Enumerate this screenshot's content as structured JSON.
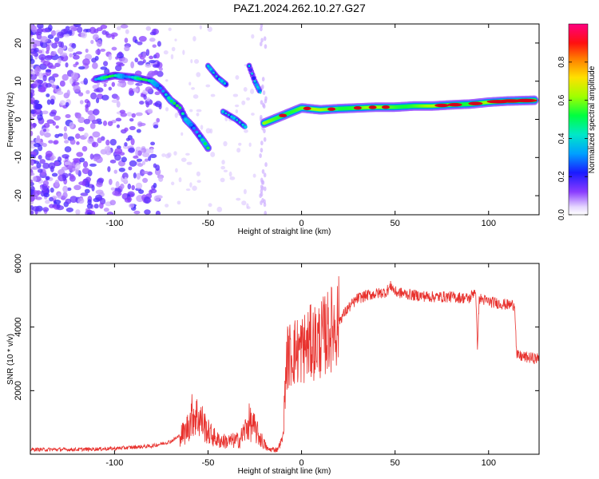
{
  "title": "PAZ1.2024.262.10.27.G27",
  "colors": {
    "snr_line": "#e8322e",
    "spectral_core": "#d6001c",
    "spectral_scatter": "#8a3cff"
  },
  "chart_data": [
    {
      "type": "heatmap",
      "title": "",
      "xlabel": "Height of straight line (km)",
      "ylabel": "Frequency (Hz)",
      "xlim": [
        -145,
        127
      ],
      "ylim": [
        -25,
        25
      ],
      "x_ticks": [
        "-100",
        "-50",
        "0",
        "50",
        "100"
      ],
      "x_tick_values": [
        -100,
        -50,
        0,
        50,
        100
      ],
      "y_ticks": [
        "-20",
        "-10",
        "0",
        "10",
        "20"
      ],
      "y_tick_values": [
        -20,
        -10,
        0,
        10,
        20
      ],
      "colorbar": {
        "label": "Normalized spectral amplitude",
        "range": [
          0,
          1
        ],
        "ticks": [
          "0.0",
          "0.2",
          "0.4",
          "0.6",
          "0.8"
        ],
        "tick_values": [
          0.0,
          0.2,
          0.4,
          0.6,
          0.8
        ],
        "colormap": "rainbow (white-violet-blue-cyan-green-yellow-red-magenta)"
      },
      "main_ridge": {
        "x": [
          -110,
          -100,
          -90,
          -80,
          -75,
          -70,
          -65,
          -62,
          -58,
          -55,
          -52,
          -50
        ],
        "y": [
          10.5,
          11.5,
          11,
          10,
          8,
          5,
          3,
          0,
          -2,
          -4,
          -6,
          -7.5
        ]
      },
      "secondary_ridge": {
        "x": [
          -20,
          -15,
          -10,
          -5,
          0,
          10,
          20,
          30,
          40,
          50,
          60,
          70,
          80,
          90,
          100,
          110,
          125
        ],
        "y": [
          -1,
          0,
          1,
          2,
          3,
          2.5,
          2.8,
          3,
          3.2,
          3.2,
          3.5,
          3.5,
          3.8,
          4,
          4.5,
          4.8,
          5
        ]
      },
      "scatter_features": [
        {
          "x": [
            -50,
            -45,
            -40
          ],
          "y": [
            14,
            11,
            9
          ]
        },
        {
          "x": [
            -28,
            -25,
            -22
          ],
          "y": [
            14,
            10,
            7
          ]
        },
        {
          "x": [
            -42,
            -35,
            -30
          ],
          "y": [
            2,
            0,
            -2
          ]
        }
      ],
      "grid": false
    },
    {
      "type": "line",
      "title": "",
      "xlabel": "Height of straight line (km)",
      "ylabel": "SNR (10 * v/v)",
      "xlim": [
        -145,
        127
      ],
      "ylim": [
        0,
        6000
      ],
      "x_ticks": [
        "-100",
        "-50",
        "0",
        "50",
        "100"
      ],
      "x_tick_values": [
        -100,
        -50,
        0,
        50,
        100
      ],
      "y_ticks": [
        "2000",
        "4000",
        "6000"
      ],
      "y_tick_values": [
        2000,
        4000,
        6000
      ],
      "envelope": {
        "x": [
          -145,
          -120,
          -100,
          -80,
          -70,
          -62,
          -58,
          -54,
          -50,
          -45,
          -40,
          -33,
          -28,
          -25,
          -22,
          -18,
          -13,
          -10,
          -8,
          -5,
          0,
          5,
          10,
          15,
          20,
          25,
          30,
          35,
          40,
          45,
          48,
          50,
          55,
          60,
          70,
          80,
          90,
          93,
          94,
          95,
          100,
          105,
          110,
          114,
          115,
          120,
          127
        ],
        "y": [
          150,
          150,
          180,
          260,
          400,
          700,
          1300,
          1100,
          700,
          450,
          400,
          450,
          1000,
          800,
          500,
          150,
          150,
          500,
          3000,
          3200,
          3300,
          3500,
          3600,
          3900,
          4200,
          4600,
          4900,
          5000,
          5050,
          5100,
          5300,
          5100,
          5050,
          5000,
          4950,
          4950,
          4900,
          5200,
          3400,
          4900,
          4800,
          4750,
          4700,
          4700,
          3100,
          3050,
          3000
        ]
      },
      "grid": false
    }
  ]
}
